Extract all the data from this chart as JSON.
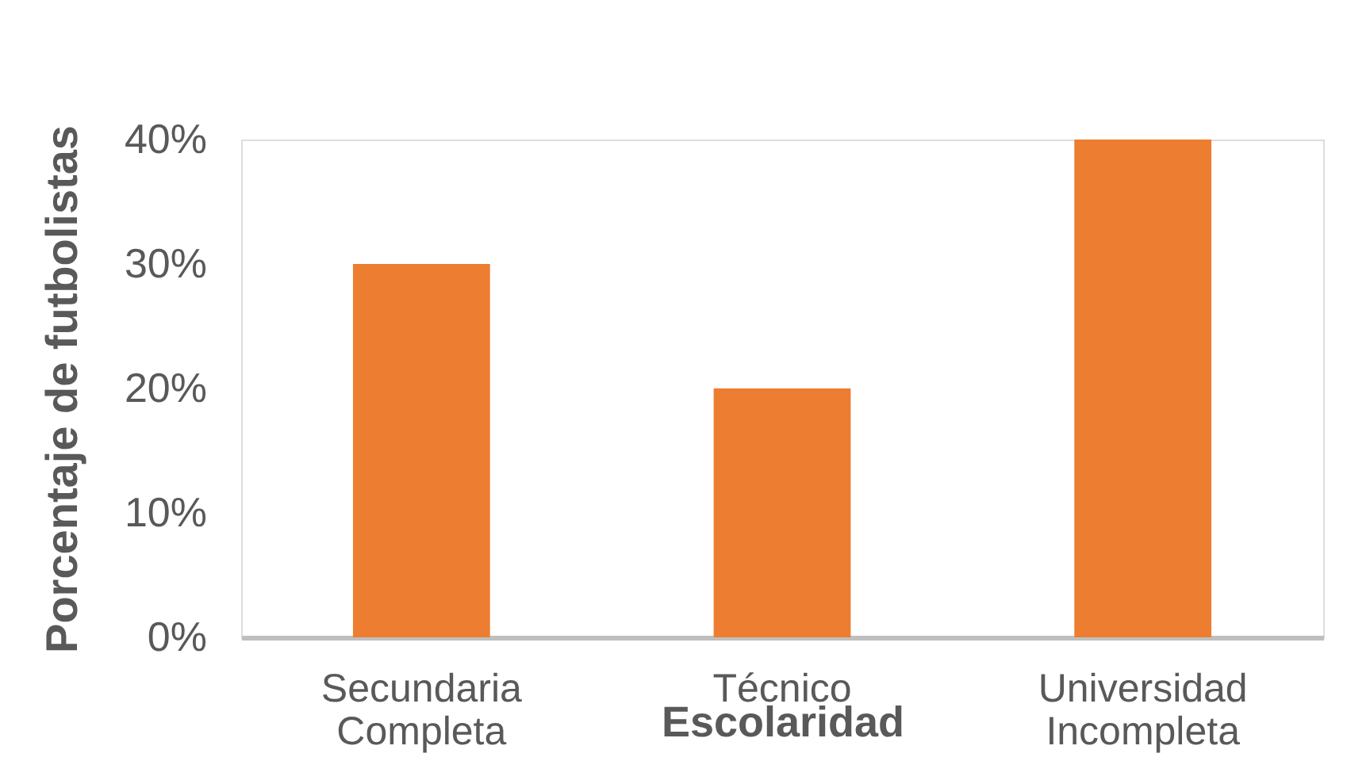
{
  "chart_data": {
    "type": "bar",
    "categories": [
      "Secundaria Completa",
      "Técnico",
      "Universidad Incompleta"
    ],
    "values": [
      30,
      20,
      40
    ],
    "color": "#ed7d31",
    "xlabel": "Escolaridad",
    "ylabel": "Porcentaje de futbolistas",
    "ylim": [
      0,
      40
    ],
    "yticks": [
      {
        "value": 0,
        "label": "0%"
      },
      {
        "value": 10,
        "label": "10%"
      },
      {
        "value": 20,
        "label": "20%"
      },
      {
        "value": 30,
        "label": "30%"
      },
      {
        "value": 40,
        "label": "40%"
      }
    ]
  }
}
